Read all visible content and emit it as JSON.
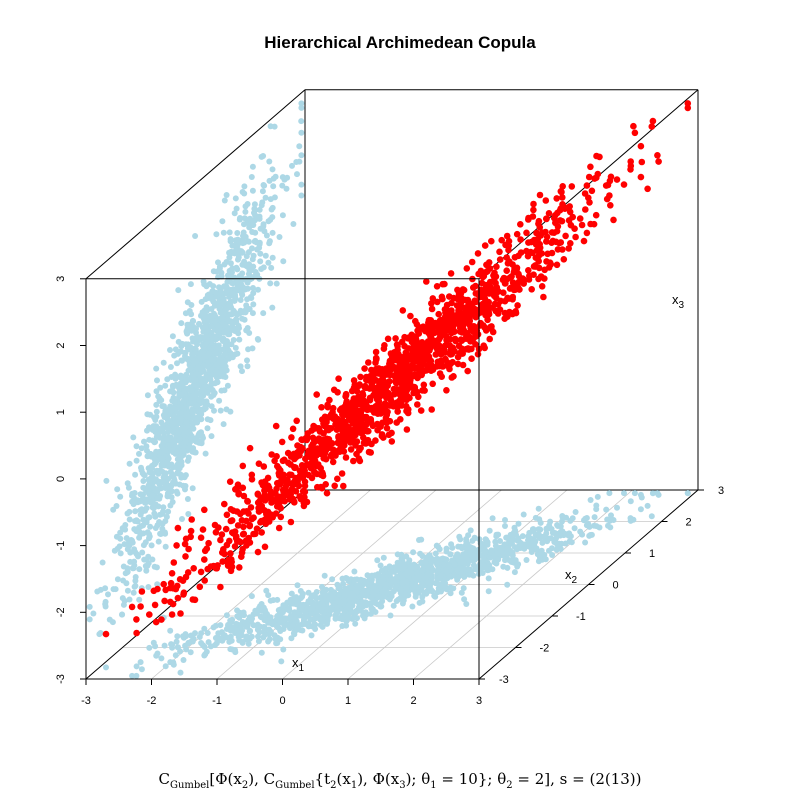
{
  "chart_data": {
    "type": "scatter",
    "title": "Hierarchical Archimedean Copula",
    "axes": {
      "x": {
        "label": "x",
        "sub": "1",
        "range": [
          -3,
          3
        ],
        "ticks": [
          "-3",
          "-2",
          "-1",
          "0",
          "1",
          "2",
          "3"
        ]
      },
      "y": {
        "label": "x",
        "sub": "2",
        "range": [
          -3,
          3
        ],
        "ticks": [
          "-3",
          "-2",
          "-1",
          "0",
          "1",
          "2",
          "3"
        ]
      },
      "z": {
        "label": "x",
        "sub": "3",
        "range": [
          -3,
          3
        ],
        "ticks": [
          "-3",
          "-2",
          "-1",
          "0",
          "1",
          "2",
          "3"
        ]
      }
    },
    "grid": "floor (x1–x2 plane)",
    "series": [
      {
        "role": "3d points",
        "color": "#ff0000",
        "count": 1500
      },
      {
        "role": "floor projection (x1, x2)",
        "color": "#add8e6"
      },
      {
        "role": "wall projection (x2, x3)",
        "color": "#add8e6"
      }
    ],
    "dependence": {
      "theta1": 10,
      "theta2": 2,
      "structure": "s = (2(13))"
    },
    "caption": {
      "C1": "C",
      "C1sub": "Gumbel",
      "a": "[Φ(x",
      "a_sub": "2",
      "b": "), ",
      "C2": "C",
      "C2sub": "Gumbel",
      "c": "{t",
      "c_sub": "2",
      "d": "(x",
      "d_sub": "1",
      "e": "), Φ(x",
      "e_sub": "3",
      "f": "); θ",
      "f_sub": "1",
      "g": " = 10}; θ",
      "g_sub": "2",
      "h": " = 2], s = (2(13))"
    }
  }
}
